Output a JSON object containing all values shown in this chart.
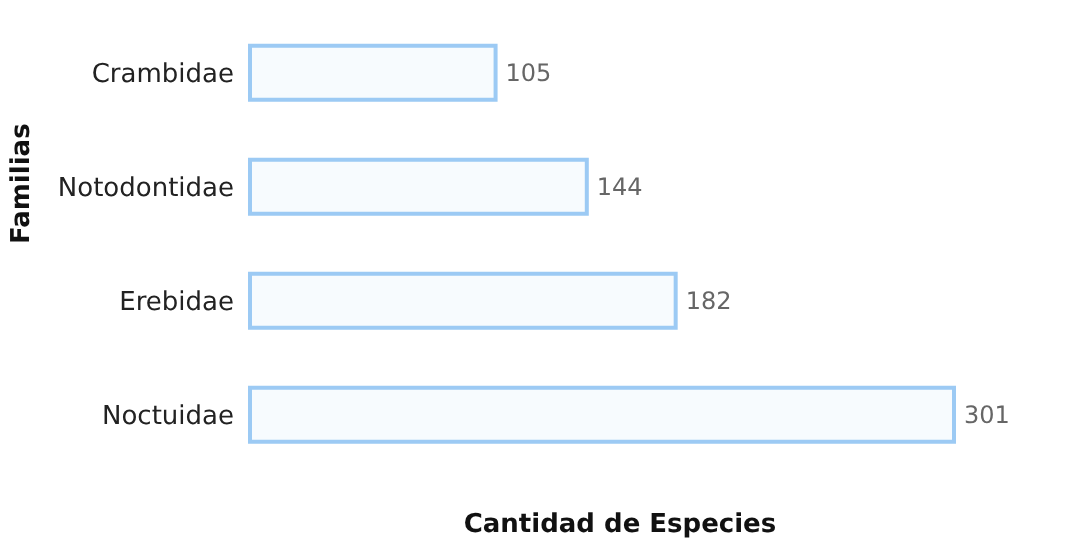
{
  "chart_data": {
    "type": "bar",
    "orientation": "horizontal",
    "xlabel": "Cantidad de Especies",
    "ylabel": "Familias",
    "categories": [
      "Crambidae",
      "Notodontidae",
      "Erebidae",
      "Noctuidae"
    ],
    "values": [
      105,
      144,
      182,
      301
    ],
    "color": "#9ccaf4",
    "data_labels": true,
    "grid": false,
    "legend": false
  }
}
